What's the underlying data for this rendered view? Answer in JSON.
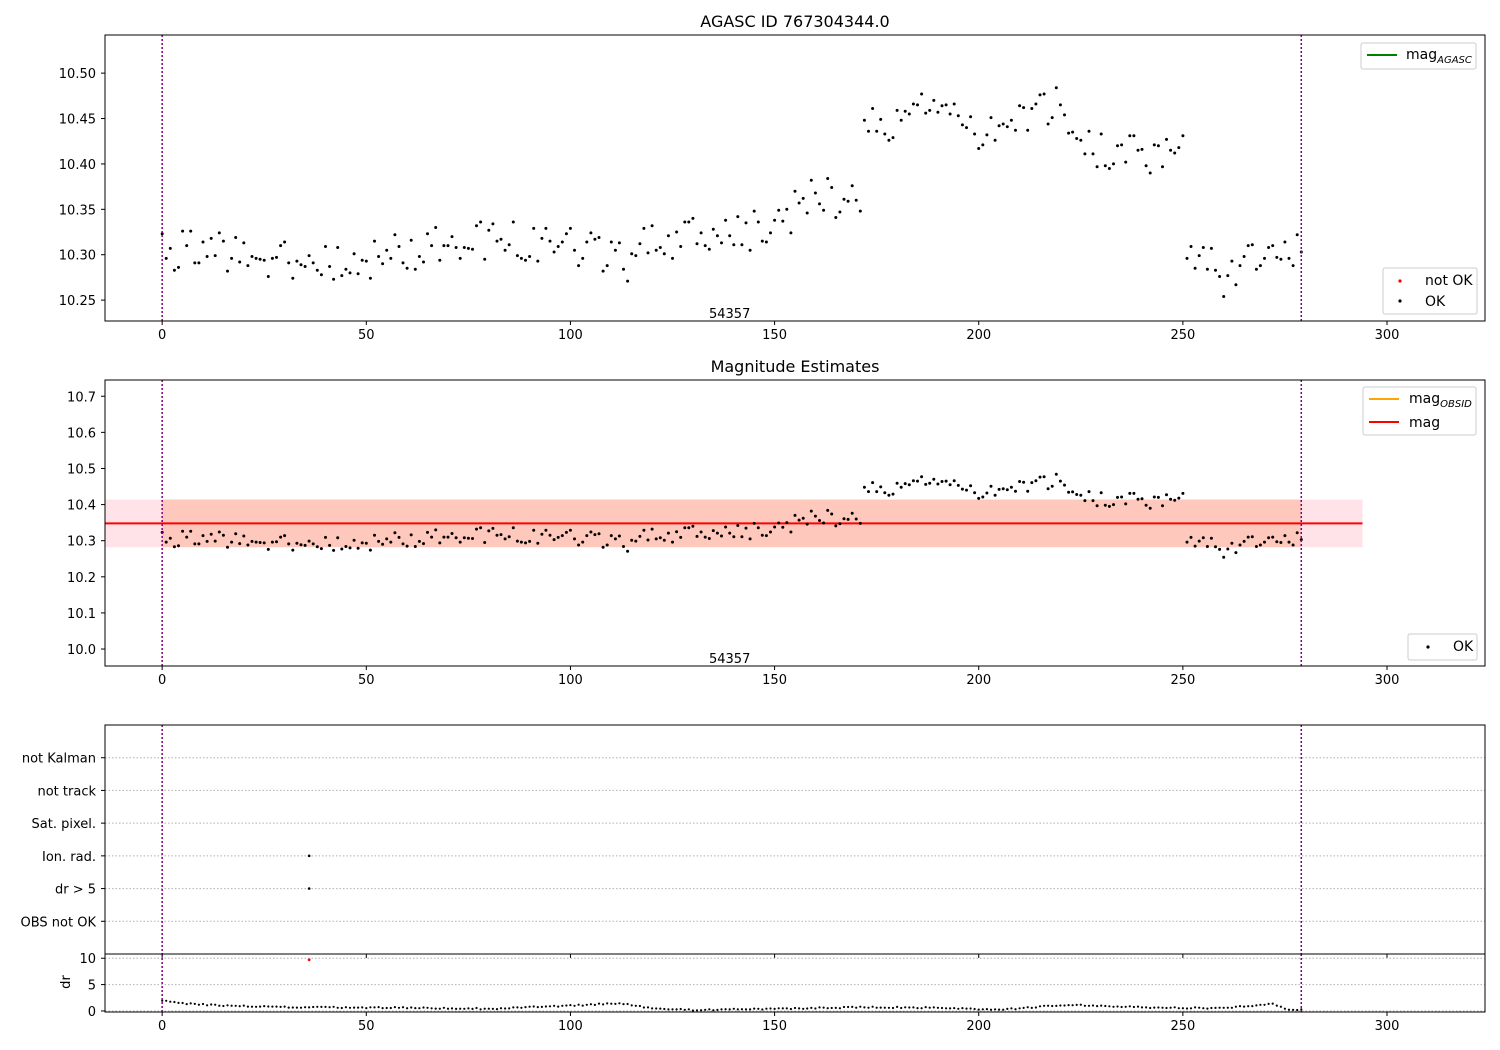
{
  "colors": {
    "ok": "#000000",
    "not_ok": "#ff0000",
    "mag_agasc": "#008000",
    "mag_obsid": "#ffa500",
    "mag": "#ff0000",
    "obs_boundary": "#800080",
    "band_outer": "#ffc0cb",
    "band_inner": "#ffa07a"
  },
  "chart_data": [
    {
      "type": "scatter",
      "title": "AGASC ID 767304344.0",
      "xlim": [
        -14,
        324
      ],
      "ylim": [
        10.227,
        10.542
      ],
      "xticks": [
        0,
        50,
        100,
        150,
        200,
        250,
        300
      ],
      "yticks": [
        10.25,
        10.3,
        10.35,
        10.4,
        10.45,
        10.5
      ],
      "yticks_text": [
        "10.25",
        "10.30",
        "10.35",
        "10.40",
        "10.45",
        "10.50"
      ],
      "obs_boundaries": [
        0,
        279
      ],
      "obs_label": {
        "text": "54357",
        "x": 139,
        "y": 10.236
      },
      "legend_top": [
        {
          "name": "mag",
          "sub": "AGASC",
          "color_key": "mag_agasc"
        }
      ],
      "legend_bottom": [
        {
          "name": "not OK",
          "color_key": "not_ok"
        },
        {
          "name": "OK",
          "color_key": "ok"
        }
      ],
      "anchors": [
        [
          0,
          10.305
        ],
        [
          20,
          10.3
        ],
        [
          40,
          10.288
        ],
        [
          60,
          10.305
        ],
        [
          80,
          10.315
        ],
        [
          100,
          10.312
        ],
        [
          113,
          10.29
        ],
        [
          120,
          10.318
        ],
        [
          140,
          10.32
        ],
        [
          150,
          10.335
        ],
        [
          160,
          10.365
        ],
        [
          171,
          10.355
        ],
        [
          172,
          10.44
        ],
        [
          180,
          10.45
        ],
        [
          190,
          10.478
        ],
        [
          200,
          10.44
        ],
        [
          210,
          10.455
        ],
        [
          220,
          10.465
        ],
        [
          225,
          10.42
        ],
        [
          240,
          10.41
        ],
        [
          250,
          10.42
        ],
        [
          251,
          10.31
        ],
        [
          260,
          10.275
        ],
        [
          270,
          10.305
        ],
        [
          279,
          10.305
        ]
      ],
      "noise": 0.023
    },
    {
      "type": "scatter",
      "title": "Magnitude Estimates",
      "xlim": [
        -14,
        324
      ],
      "ylim": [
        9.953,
        10.745
      ],
      "xticks": [
        0,
        50,
        100,
        150,
        200,
        250,
        300
      ],
      "yticks": [
        10.0,
        10.1,
        10.2,
        10.3,
        10.4,
        10.5,
        10.6,
        10.7
      ],
      "yticks_text": [
        "10.0",
        "10.1",
        "10.2",
        "10.3",
        "10.4",
        "10.5",
        "10.6",
        "10.7"
      ],
      "obs_boundaries": [
        0,
        279
      ],
      "obs_label": {
        "text": "54357",
        "x": 139,
        "y": 9.975
      },
      "mag_line": {
        "x": [
          -14,
          294
        ],
        "y": 10.348
      },
      "band_outer": {
        "x": [
          -14,
          294
        ],
        "y": [
          10.282,
          10.414
        ]
      },
      "band_inner": {
        "x": [
          0,
          279
        ],
        "y": [
          10.282,
          10.414
        ]
      },
      "legend_top": [
        {
          "name": "mag",
          "sub": "OBSID",
          "color_key": "mag_obsid"
        },
        {
          "name": "mag",
          "sub": "",
          "color_key": "mag"
        }
      ],
      "legend_bottom": [
        {
          "name": "OK",
          "color_key": "ok"
        }
      ]
    },
    {
      "type": "scatter",
      "title": "",
      "xlim": [
        -14,
        324
      ],
      "ylim": [
        0,
        7
      ],
      "xticks": [
        0,
        50,
        100,
        150,
        200,
        250,
        300
      ],
      "yticks": [
        1,
        2,
        3,
        4,
        5,
        6
      ],
      "yticks_text": [
        "OBS not OK",
        "dr > 5",
        "Ion. rad.",
        "Sat. pixel.",
        "not track",
        "not Kalman"
      ],
      "obs_boundaries": [
        0,
        279
      ],
      "flags": [
        {
          "x": 36,
          "y": 3
        },
        {
          "x": 36,
          "y": 2
        }
      ]
    },
    {
      "type": "scatter",
      "title": "",
      "xlim": [
        -14,
        324
      ],
      "ylim": [
        -0.2,
        10.8
      ],
      "xticks": [
        0,
        50,
        100,
        150,
        200,
        250,
        300
      ],
      "xticks_text": [
        "0",
        "50",
        "100",
        "150",
        "200",
        "250",
        "300"
      ],
      "yticks": [
        0,
        5,
        10
      ],
      "yticks_text": [
        "0",
        "5",
        "10"
      ],
      "ylabel": "dr",
      "obs_boundaries": [
        0,
        279
      ],
      "not_ok_points": [
        {
          "x": 36,
          "y": 9.7
        }
      ],
      "anchors": [
        [
          0,
          2.0
        ],
        [
          5,
          1.4
        ],
        [
          10,
          1.2
        ],
        [
          20,
          0.9
        ],
        [
          36,
          0.7
        ],
        [
          60,
          0.6
        ],
        [
          80,
          0.4
        ],
        [
          100,
          1.0
        ],
        [
          112,
          1.5
        ],
        [
          120,
          0.5
        ],
        [
          130,
          0.2
        ],
        [
          150,
          0.4
        ],
        [
          170,
          0.7
        ],
        [
          190,
          0.6
        ],
        [
          205,
          0.2
        ],
        [
          222,
          1.2
        ],
        [
          240,
          0.7
        ],
        [
          260,
          0.5
        ],
        [
          268,
          1.1
        ],
        [
          272,
          1.3
        ],
        [
          276,
          0.2
        ],
        [
          279,
          0.3
        ]
      ],
      "noise": 0.12
    }
  ]
}
